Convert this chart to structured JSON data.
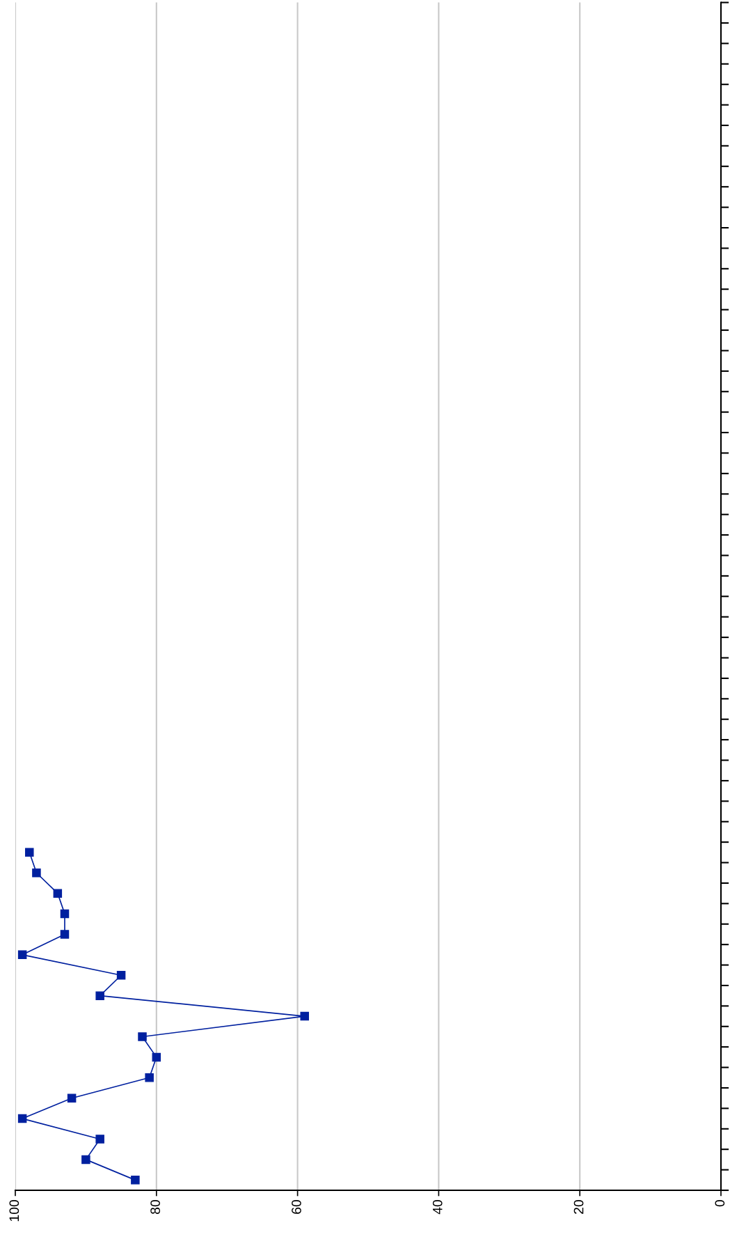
{
  "chart_data": {
    "type": "line",
    "orientation": "horizontal",
    "categories": [
      null,
      null,
      null,
      null,
      null,
      null,
      null,
      null,
      null,
      null,
      null,
      null,
      null,
      null,
      null,
      null,
      null,
      null,
      null,
      null,
      null,
      null,
      null,
      null,
      null,
      null,
      null,
      null,
      null,
      null,
      null,
      null,
      null,
      null,
      null,
      null,
      null,
      null,
      null,
      null,
      null,
      null,
      null,
      null,
      null,
      null,
      null,
      null,
      null,
      null,
      null,
      null,
      null,
      null,
      null,
      null,
      null,
      null
    ],
    "series": [
      {
        "color": "#00209f",
        "values": [
          null,
          null,
          null,
          null,
          null,
          null,
          null,
          null,
          null,
          null,
          null,
          null,
          null,
          null,
          null,
          null,
          null,
          null,
          null,
          null,
          null,
          null,
          null,
          null,
          null,
          null,
          null,
          null,
          null,
          null,
          null,
          null,
          null,
          null,
          null,
          null,
          null,
          null,
          null,
          null,
          null,
          98,
          97,
          94,
          93,
          93,
          99,
          85,
          88,
          59,
          82,
          80,
          81,
          92,
          99,
          88,
          90,
          83
        ]
      }
    ],
    "xlim": [
      100,
      0
    ],
    "xticks": [
      0,
      20,
      40,
      60,
      80,
      100
    ],
    "grid": "x",
    "marker": "square",
    "line_style": "solid",
    "tick_labels": "x"
  }
}
